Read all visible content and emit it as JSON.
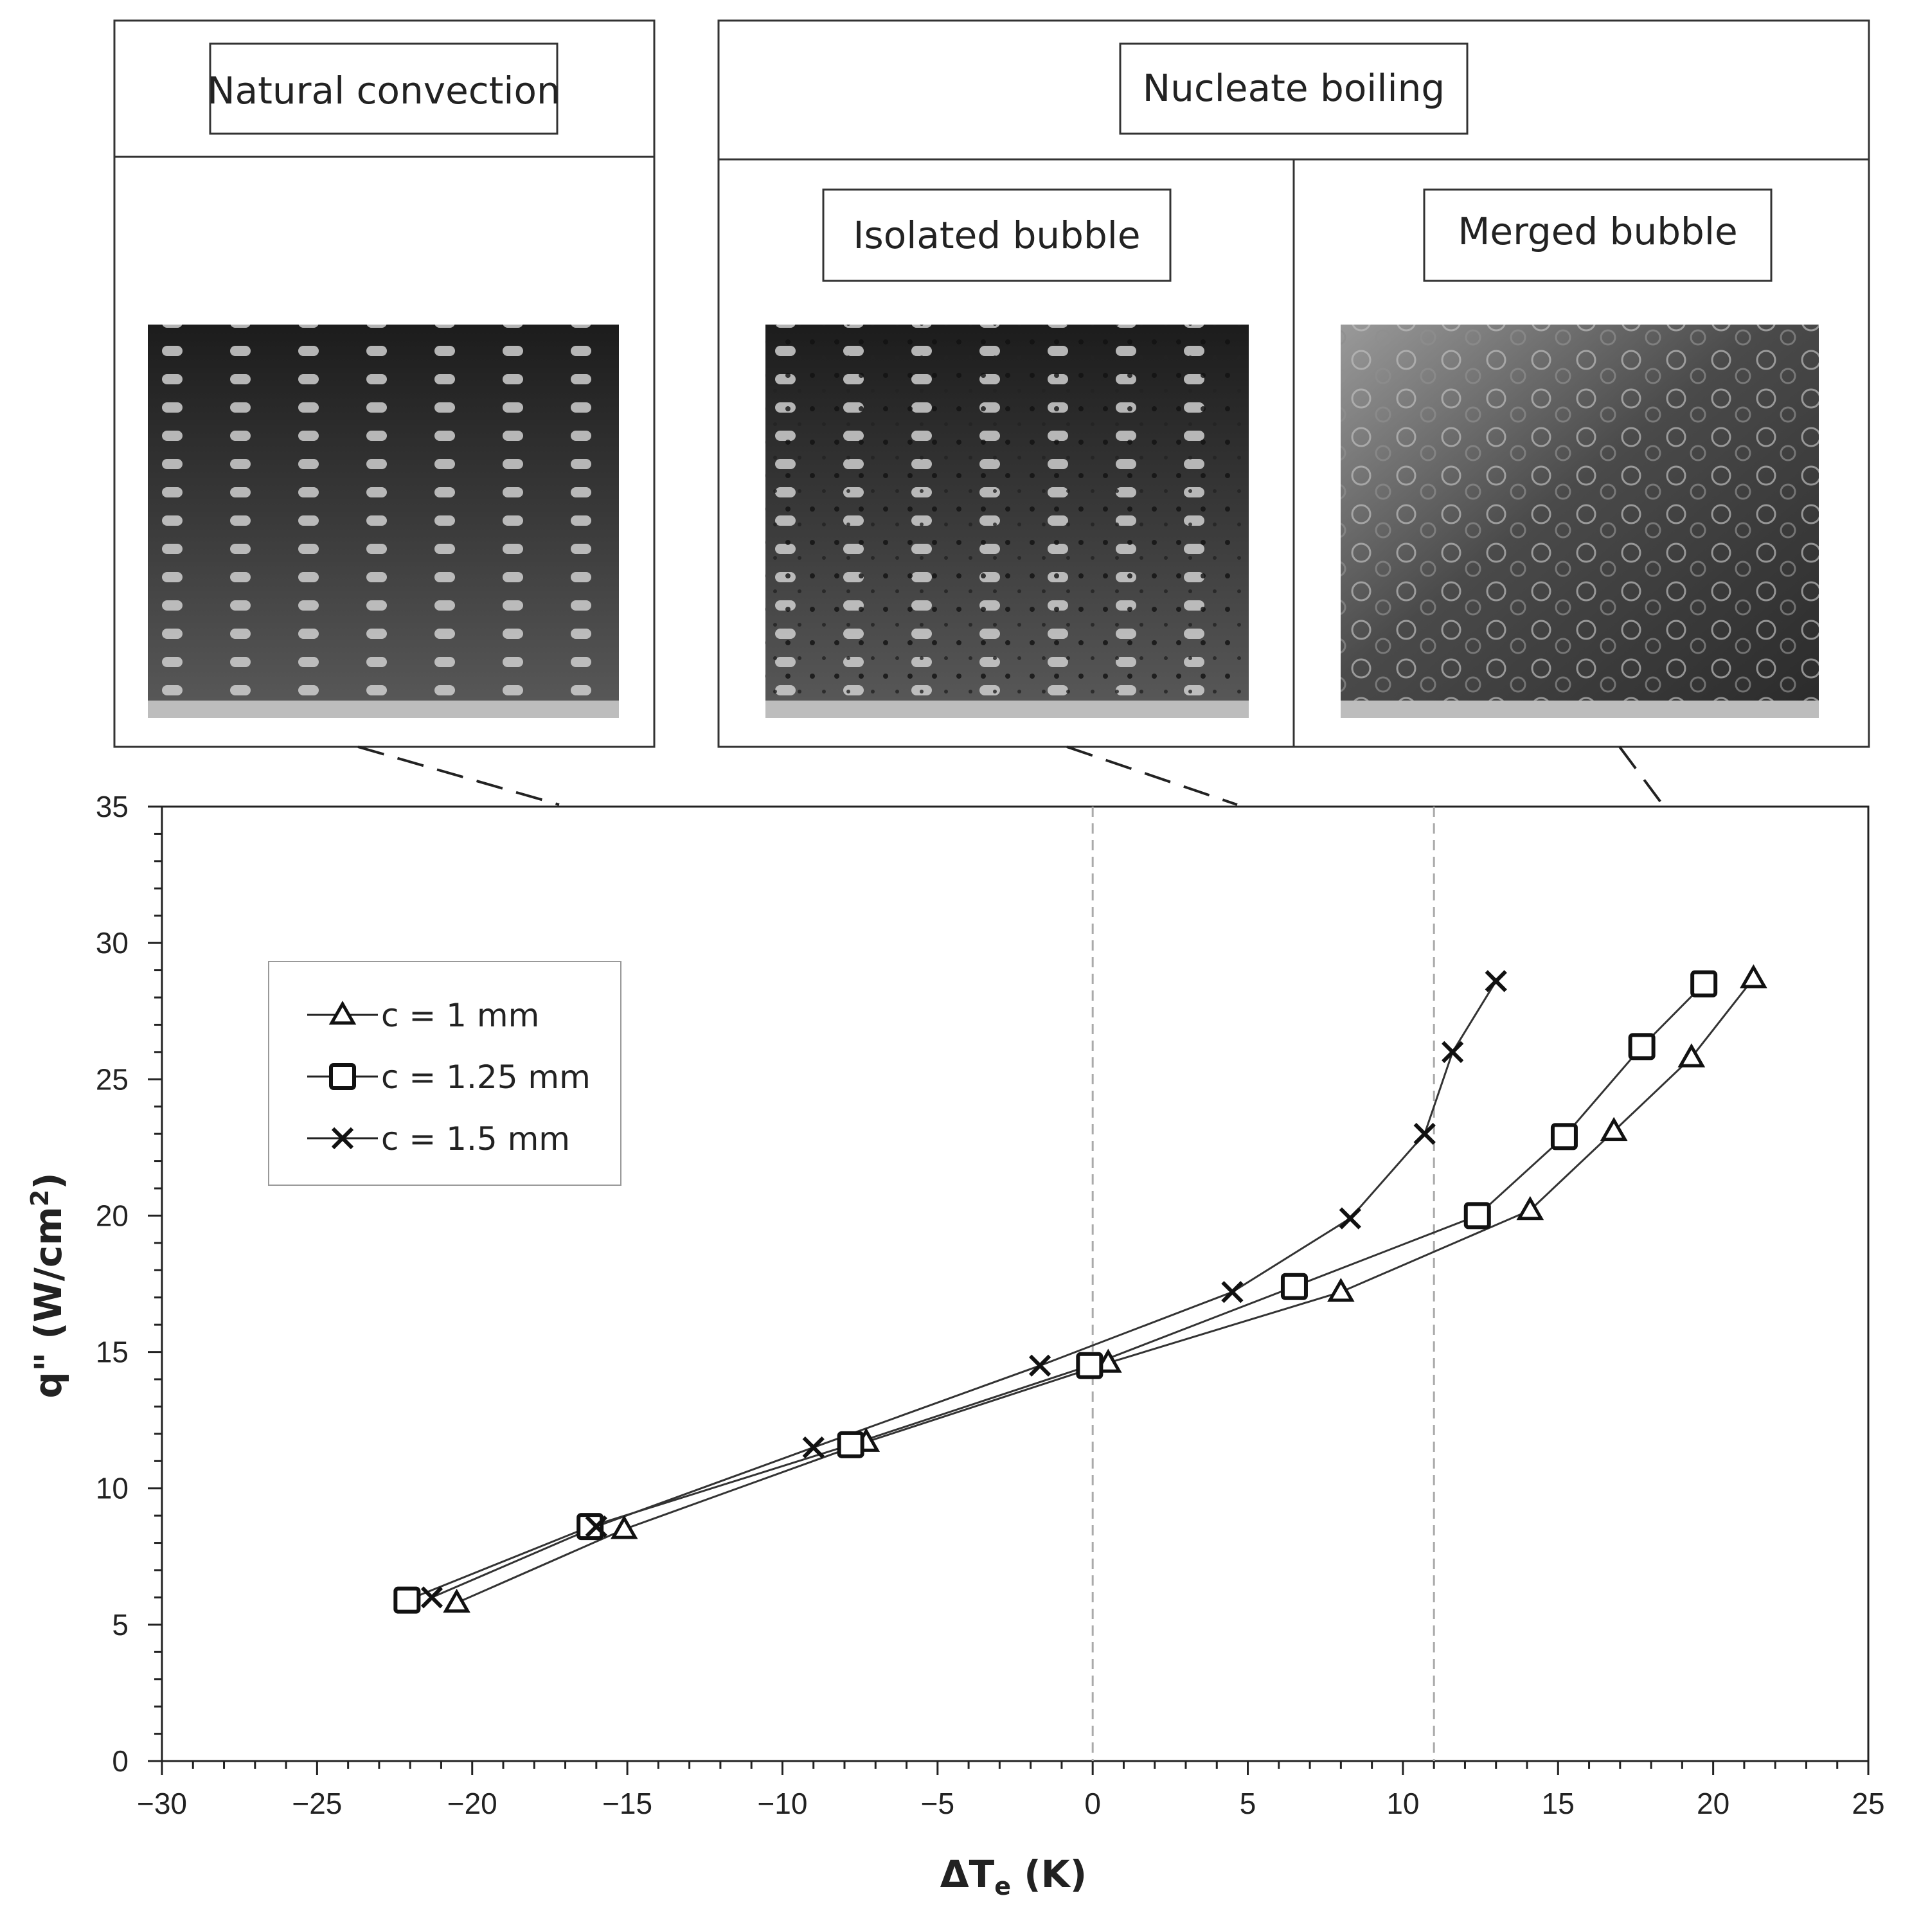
{
  "panels": {
    "natural": {
      "label": "Natural convection",
      "image_desc": "pin-fin array photo"
    },
    "nucleate": {
      "label": "Nucleate boiling"
    },
    "isolated": {
      "label": "Isolated bubble",
      "image_desc": "pin-fin array with small isolated bubbles"
    },
    "merged": {
      "label": "Merged bubble",
      "image_desc": "pin-fin array with merged bubble cloud"
    }
  },
  "chart_data": {
    "type": "line",
    "title": "",
    "xlabel_main": "ΔT",
    "xlabel_sub": "e",
    "xlabel_unit": " (K)",
    "ylabel_main": "q\" (W/cm",
    "ylabel_sup": "2",
    "ylabel_end": ")",
    "xlim": [
      -30,
      25
    ],
    "ylim": [
      0,
      35
    ],
    "x_ticks": [
      -30,
      -25,
      -20,
      -15,
      -10,
      -5,
      0,
      5,
      10,
      15,
      20,
      25
    ],
    "y_ticks": [
      0,
      5,
      10,
      15,
      20,
      25,
      30,
      35
    ],
    "x_tick_labels": [
      "−30",
      "−25",
      "−20",
      "−15",
      "−10",
      "−5",
      "0",
      "5",
      "10",
      "15",
      "20",
      "25"
    ],
    "y_tick_labels": [
      "0",
      "5",
      "10",
      "15",
      "20",
      "25",
      "30",
      "35"
    ],
    "vertical_dashed_lines": [
      0,
      11
    ],
    "legend_position": "upper-left",
    "series": [
      {
        "name": "c = 1 mm",
        "marker": "triangle",
        "x": [
          -20.5,
          -15.1,
          -7.3,
          0.5,
          8.0,
          14.1,
          16.8,
          19.3,
          21.3
        ],
        "y": [
          5.8,
          8.5,
          11.7,
          14.6,
          17.2,
          20.2,
          23.1,
          25.8,
          28.7
        ]
      },
      {
        "name": "c = 1.25 mm",
        "marker": "square",
        "x": [
          -22.1,
          -16.2,
          -7.8,
          -0.1,
          6.5,
          12.4,
          15.2,
          17.7,
          19.7
        ],
        "y": [
          5.9,
          8.6,
          11.6,
          14.5,
          17.4,
          20.0,
          22.9,
          26.2,
          28.5
        ]
      },
      {
        "name": "c = 1.5 mm",
        "marker": "cross",
        "x": [
          -21.3,
          -16.0,
          -9.0,
          -1.7,
          4.5,
          8.3,
          10.7,
          11.6,
          13.0
        ],
        "y": [
          6.0,
          8.6,
          11.5,
          14.5,
          17.2,
          19.9,
          23.0,
          26.0,
          28.6
        ]
      }
    ]
  }
}
